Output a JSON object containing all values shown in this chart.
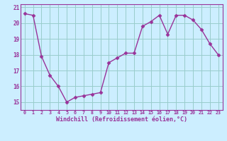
{
  "x": [
    0,
    1,
    2,
    3,
    4,
    5,
    6,
    7,
    8,
    9,
    10,
    11,
    12,
    13,
    14,
    15,
    16,
    17,
    18,
    19,
    20,
    21,
    22,
    23
  ],
  "y": [
    20.6,
    20.5,
    17.9,
    16.7,
    16.0,
    15.0,
    15.3,
    15.4,
    15.5,
    15.6,
    17.5,
    17.8,
    18.1,
    18.1,
    19.8,
    20.1,
    20.5,
    19.3,
    20.5,
    20.5,
    20.2,
    19.6,
    18.7,
    18.0
  ],
  "xlabel": "Windchill (Refroidissement éolien,°C)",
  "ylim": [
    14.5,
    21.2
  ],
  "xlim": [
    -0.5,
    23.5
  ],
  "yticks": [
    15,
    16,
    17,
    18,
    19,
    20,
    21
  ],
  "xticks": [
    0,
    1,
    2,
    3,
    4,
    5,
    6,
    7,
    8,
    9,
    10,
    11,
    12,
    13,
    14,
    15,
    16,
    17,
    18,
    19,
    20,
    21,
    22,
    23
  ],
  "line_color": "#993399",
  "bg_color": "#cceeff",
  "grid_color": "#99cccc",
  "marker_size": 2.5,
  "line_width": 1.0
}
